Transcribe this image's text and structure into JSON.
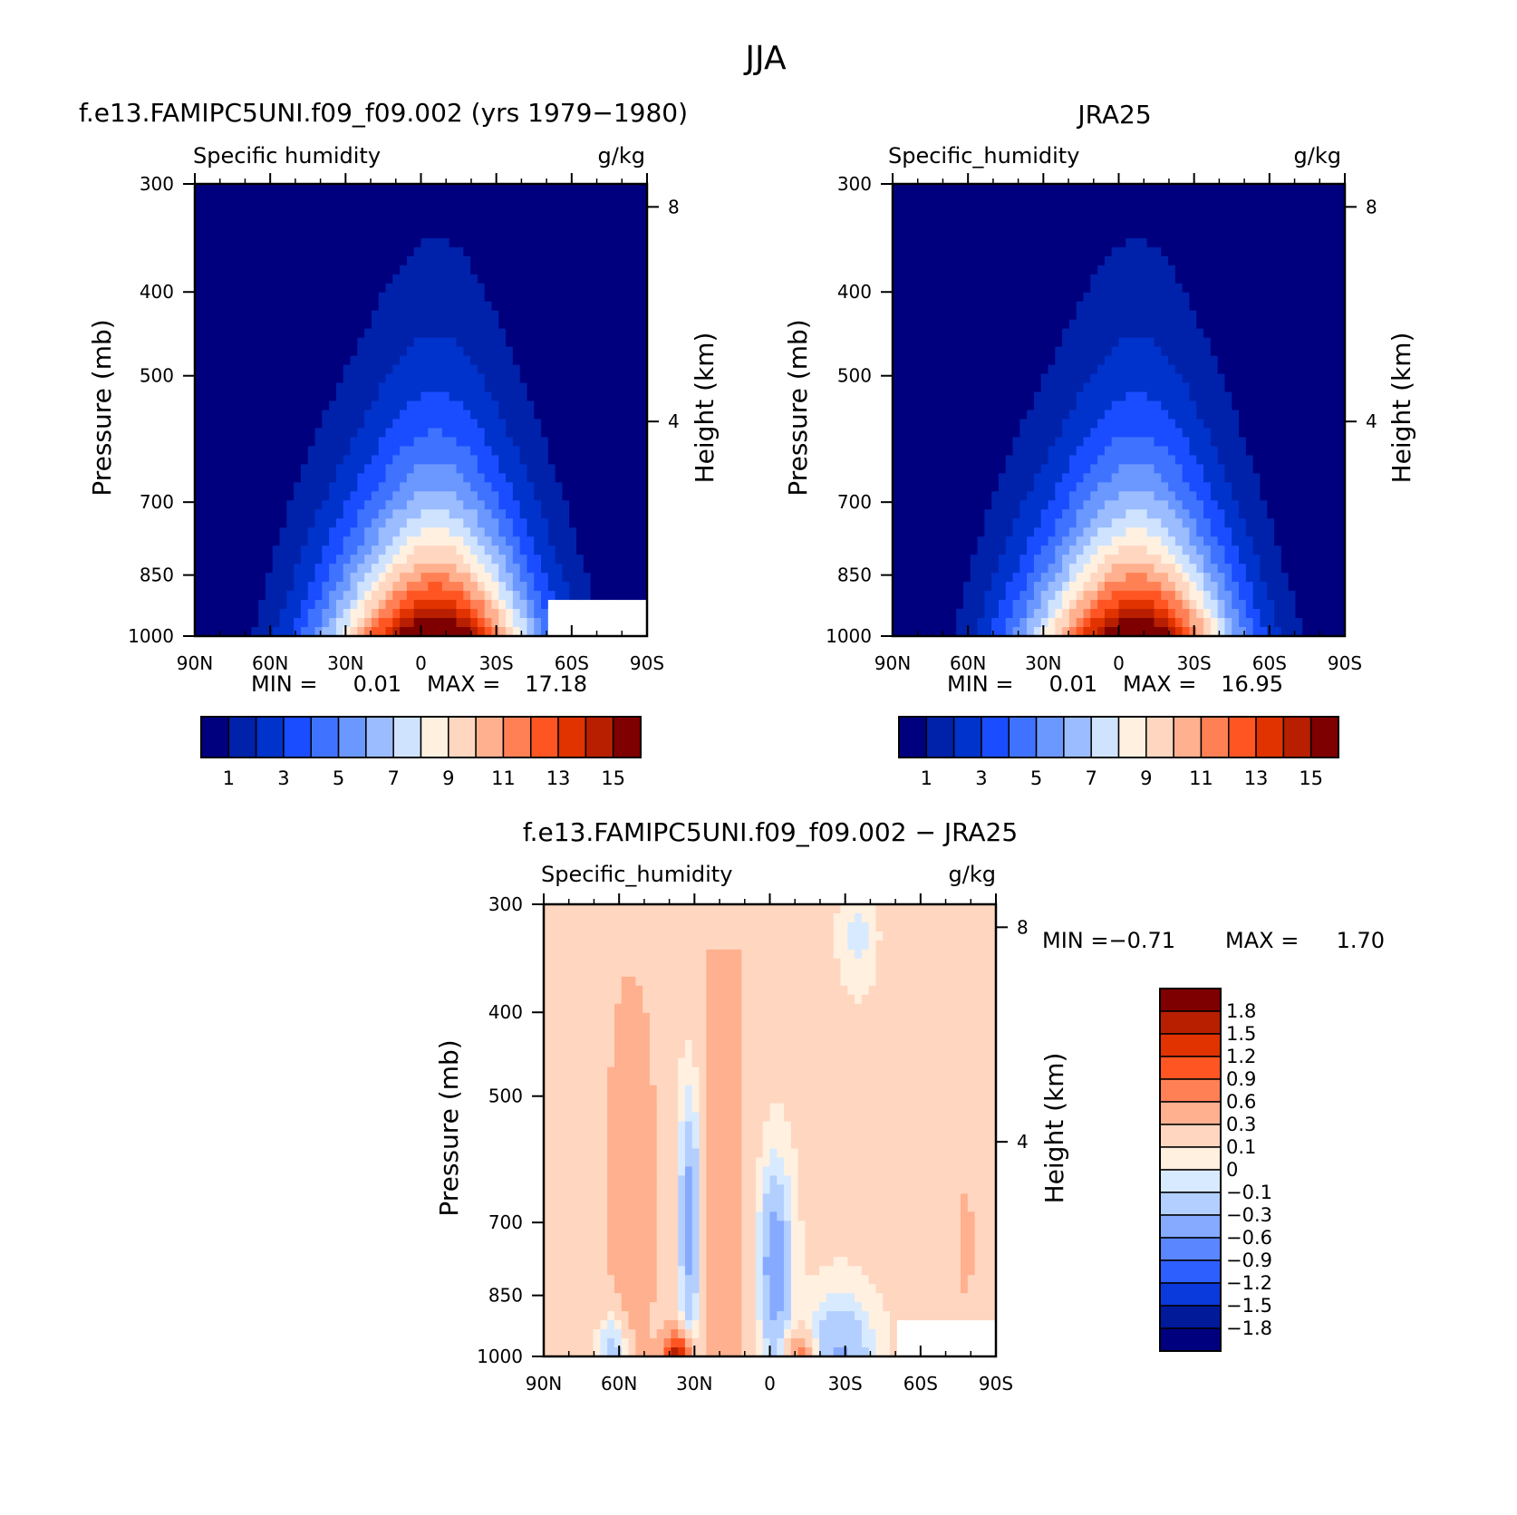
{
  "figure": {
    "title": "JJA"
  },
  "colors": {
    "abs_levels": [
      "#00007f",
      "#0022aa",
      "#0033cc",
      "#1a4dff",
      "#3f73ff",
      "#6b98ff",
      "#9bbcff",
      "#cfe3ff",
      "#fff0e0",
      "#ffd6bf",
      "#ffb08f",
      "#ff8055",
      "#ff5522",
      "#e03300",
      "#b81f00",
      "#7f0000"
    ],
    "diff_levels": [
      "#7f0000",
      "#b81f00",
      "#e03300",
      "#ff5522",
      "#ff8055",
      "#ffb08f",
      "#ffd6bf",
      "#fff0e0",
      "#d8eaff",
      "#b3cfff",
      "#86aaff",
      "#5a86ff",
      "#2d5fff",
      "#0a3adb",
      "#001a99",
      "#00007f"
    ],
    "white": "#ffffff"
  },
  "chart_data": [
    {
      "type": "heatmap",
      "id": "model",
      "title": "f.e13.FAMIPC5UNI.f09_f09.002 (yrs 1979-1980)",
      "left_subtitle": "Specific humidity",
      "right_subtitle": "g/kg",
      "ylabel": "Pressure (mb)",
      "y2label": "Height (km)",
      "x_ticks": [
        "90N",
        "60N",
        "30N",
        "0",
        "30S",
        "60S",
        "90S"
      ],
      "x_values": [
        90,
        60,
        30,
        0,
        -30,
        -60,
        -90
      ],
      "y_ticks": [
        "300",
        "400",
        "500",
        "700",
        "850",
        "1000"
      ],
      "y_values": [
        300,
        400,
        500,
        700,
        850,
        1000
      ],
      "y2_ticks": [
        "8",
        "4"
      ],
      "y2_values": [
        8,
        4
      ],
      "min_label": "MIN =",
      "min": "0.01",
      "max_label": "MAX =",
      "max": "17.18",
      "colorbar_labels": [
        "1",
        "3",
        "5",
        "7",
        "9",
        "11",
        "13",
        "15"
      ],
      "peak": 17.18,
      "peak_lat": -6,
      "missing_surface_south_of": -50
    },
    {
      "type": "heatmap",
      "id": "obs",
      "title": "JRA25",
      "left_subtitle": "Specific_humidity",
      "right_subtitle": "g/kg",
      "ylabel": "Pressure (mb)",
      "y2label": "Height (km)",
      "x_ticks": [
        "90N",
        "60N",
        "30N",
        "0",
        "30S",
        "60S",
        "90S"
      ],
      "x_values": [
        90,
        60,
        30,
        0,
        -30,
        -60,
        -90
      ],
      "y_ticks": [
        "300",
        "400",
        "500",
        "700",
        "850",
        "1000"
      ],
      "y_values": [
        300,
        400,
        500,
        700,
        850,
        1000
      ],
      "y2_ticks": [
        "8",
        "4"
      ],
      "y2_values": [
        8,
        4
      ],
      "min_label": "MIN =",
      "min": "0.01",
      "max_label": "MAX =",
      "max": "16.95",
      "colorbar_labels": [
        "1",
        "3",
        "5",
        "7",
        "9",
        "11",
        "13",
        "15"
      ],
      "peak": 16.95,
      "peak_lat": -7
    },
    {
      "type": "heatmap",
      "id": "diff",
      "title": "f.e13.FAMIPC5UNI.f09_f09.002 - JRA25",
      "left_subtitle": "Specific_humidity",
      "right_subtitle": "g/kg",
      "ylabel": "Pressure (mb)",
      "y2label": "Height (km)",
      "x_ticks": [
        "90N",
        "60N",
        "30N",
        "0",
        "30S",
        "60S",
        "90S"
      ],
      "x_values": [
        90,
        60,
        30,
        0,
        -30,
        -60,
        -90
      ],
      "y_ticks": [
        "300",
        "400",
        "500",
        "700",
        "850",
        "1000"
      ],
      "y_values": [
        300,
        400,
        500,
        700,
        850,
        1000
      ],
      "y2_ticks": [
        "8",
        "4"
      ],
      "y2_values": [
        8,
        4
      ],
      "min_label": "MIN =",
      "min": "-0.71",
      "max_label": "MAX =",
      "max": "1.70",
      "colorbar_labels": [
        "1.8",
        "1.5",
        "1.2",
        "0.9",
        "0.6",
        "0.3",
        "0.1",
        "0",
        "-0.1",
        "-0.3",
        "-0.6",
        "-0.9",
        "-1.2",
        "-1.5",
        "-1.8"
      ],
      "colorbar_levels": [
        1.8,
        1.5,
        1.2,
        0.9,
        0.6,
        0.3,
        0.1,
        0,
        -0.1,
        -0.3,
        -0.6,
        -0.9,
        -1.2,
        -1.5,
        -1.8
      ],
      "missing_surface_south_of": -50
    }
  ]
}
